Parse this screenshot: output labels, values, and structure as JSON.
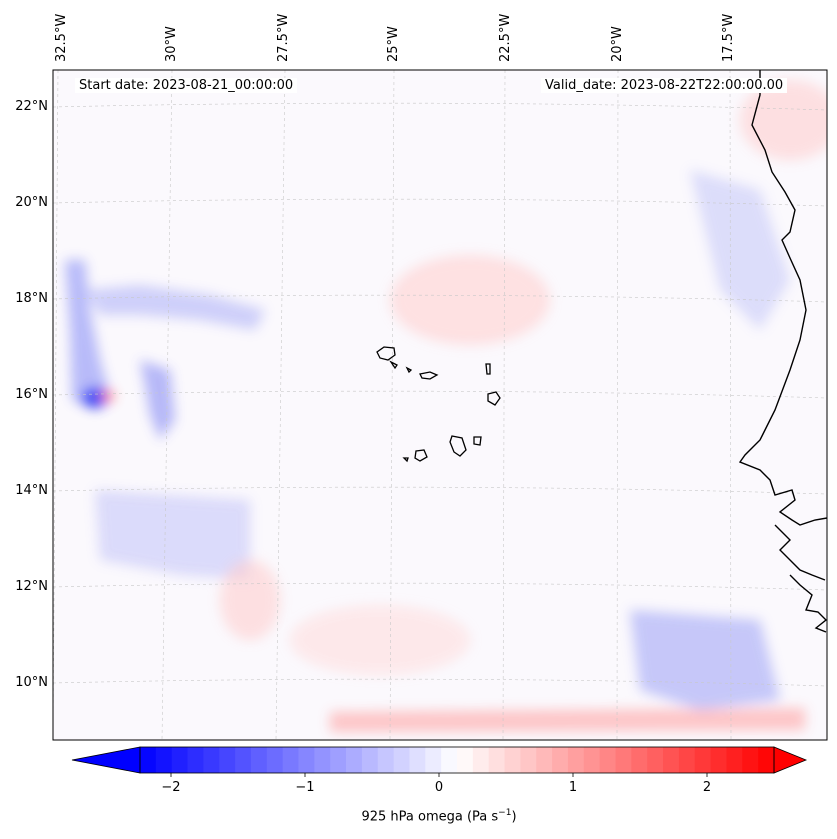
{
  "map": {
    "start_label": "Start date: 2023-08-21_00:00:00",
    "valid_label": "Valid_date: 2023-08-22T22:00:00.00",
    "longitude_labels": [
      "32.5°W",
      "30°W",
      "27.5°W",
      "25°W",
      "22.5°W",
      "20°W",
      "17.5°W"
    ],
    "latitude_labels": [
      "22°N",
      "20°N",
      "18°N",
      "16°N",
      "14°N",
      "12°N",
      "10°N"
    ],
    "field": "925 hPa omega",
    "colormap": "bwr",
    "colors": {
      "negative": "#0000ff",
      "zero": "#ffffff",
      "positive": "#ff0000",
      "coastline": "#000000",
      "gridline": "#b0b0b0"
    }
  },
  "colorbar": {
    "tick_labels": [
      "−2",
      "−1",
      "0",
      "1",
      "2"
    ],
    "title_main": "925 hPa omega (Pa s",
    "title_exp": "−1",
    "title_end": ")"
  }
}
